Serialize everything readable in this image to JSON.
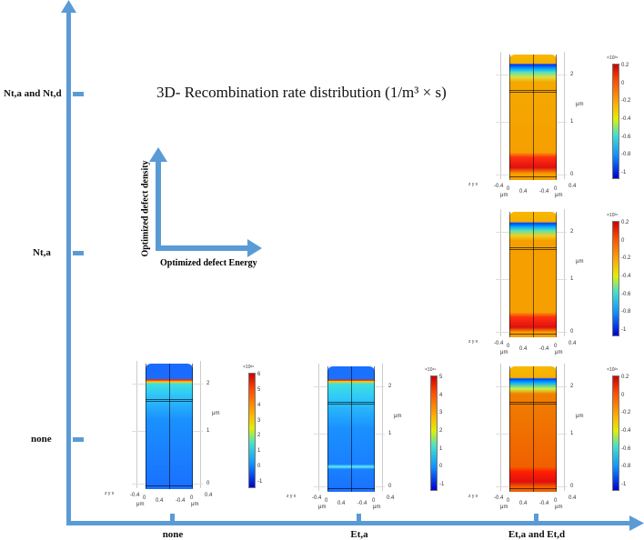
{
  "title": "3D- Recombination rate distribution (1/m³ × s)",
  "y_axis": {
    "ticks": [
      "Nt,a and Nt,d",
      "Nt,a",
      "none"
    ]
  },
  "x_axis": {
    "ticks": [
      "none",
      "Et,a",
      "Et,a and Et,d"
    ]
  },
  "inset": {
    "vertical_label": "Optimized defect density",
    "horizontal_label": "Optimized defect Energy"
  },
  "colors": {
    "axis": "#5b9bd5"
  },
  "panels": [
    {
      "id": "p1",
      "row": "Nt,a and Nt,d",
      "col": "Et,a and Et,d",
      "exponent": "×10²⁸",
      "cbar_ticks": [
        "0.2",
        "0",
        "-0.2",
        "-0.4",
        "-0.6",
        "-0.8",
        "-1"
      ],
      "z_ticks": [
        "2",
        "1",
        "0"
      ],
      "unit": "μm",
      "xy_ticks": [
        "-0.4",
        "0",
        "0.4",
        "-0.4",
        "0",
        "0.4"
      ],
      "triad": "z y x"
    },
    {
      "id": "p2",
      "row": "Nt,a",
      "col": "Et,a and Et,d",
      "exponent": "×10²⁸",
      "cbar_ticks": [
        "0.2",
        "0",
        "-0.2",
        "-0.4",
        "-0.6",
        "-0.8",
        "-1"
      ],
      "z_ticks": [
        "2",
        "1",
        "0"
      ],
      "unit": "μm",
      "xy_ticks": [
        "-0.4",
        "0",
        "0.4",
        "-0.4",
        "0",
        "0.4"
      ],
      "triad": "z y x"
    },
    {
      "id": "p3",
      "row": "none",
      "col": "none",
      "exponent": "×10²⁶",
      "cbar_ticks": [
        "6",
        "5",
        "4",
        "3",
        "2",
        "1",
        "0",
        "-1"
      ],
      "z_ticks": [
        "2",
        "1",
        "0"
      ],
      "unit": "μm",
      "xy_ticks": [
        "-0.4",
        "0",
        "0.4",
        "-0.4",
        "0",
        "0.4"
      ],
      "triad": "z y x"
    },
    {
      "id": "p4",
      "row": "none",
      "col": "Et,a",
      "exponent": "×10¹⁹",
      "cbar_ticks": [
        "5",
        "4",
        "3",
        "2",
        "1",
        "0",
        "-1"
      ],
      "z_ticks": [
        "2",
        "1",
        "0"
      ],
      "unit": "μm",
      "xy_ticks": [
        "-0.4",
        "0",
        "0.4",
        "-0.4",
        "0",
        "0.4"
      ],
      "triad": "z y x"
    },
    {
      "id": "p5",
      "row": "none",
      "col": "Et,a and Et,d",
      "exponent": "×10²⁸",
      "cbar_ticks": [
        "0.2",
        "0",
        "-0.2",
        "-0.4",
        "-0.6",
        "-0.8",
        "-1"
      ],
      "z_ticks": [
        "2",
        "1",
        "0"
      ],
      "unit": "μm",
      "xy_ticks": [
        "-0.4",
        "0",
        "0.4",
        "-0.4",
        "0",
        "0.4"
      ],
      "triad": "z y x"
    }
  ]
}
